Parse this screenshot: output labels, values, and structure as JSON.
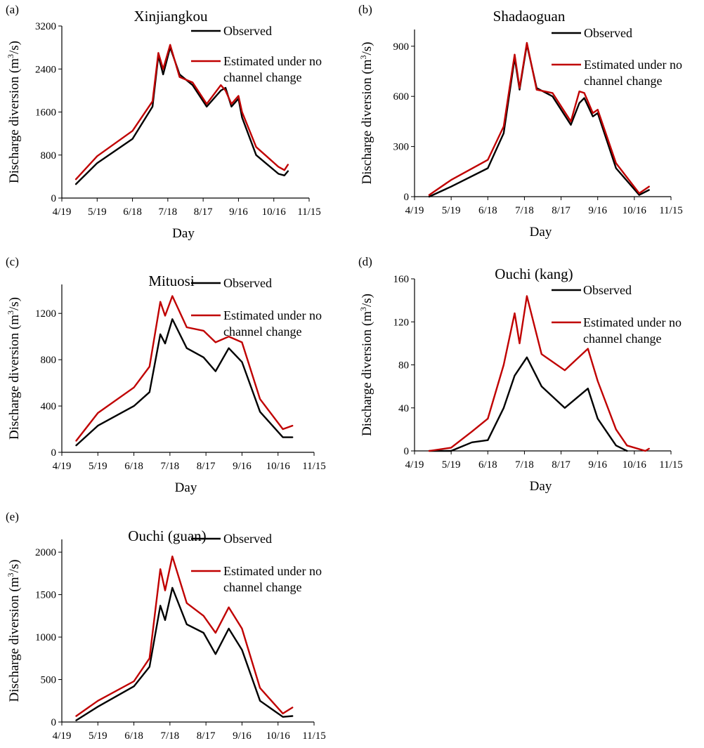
{
  "figure": {
    "panel_labels": [
      "(a)",
      "(b)",
      "(c)",
      "(d)",
      "(e)"
    ],
    "legend": {
      "observed": "Observed",
      "estimated_line1": "Estimated under no",
      "estimated_line2": "channel change"
    },
    "ylabel": {
      "main": "Discharge diversion (m",
      "sup": "3",
      "tail": "/s)"
    },
    "xlabel": "Day",
    "x_tick_labels": [
      "4/19",
      "5/19",
      "6/18",
      "7/18",
      "8/17",
      "9/16",
      "10/16",
      "11/15"
    ],
    "colors": {
      "observed": "#000000",
      "estimated": "#c00000",
      "axis": "#000000"
    }
  },
  "chart_data": [
    {
      "type": "line",
      "panel": "(a)",
      "title": "Xinjiangkou",
      "xlabel": "Day",
      "ylabel": "Discharge diversion (m3/s)",
      "x_ticks": [
        "4/19",
        "5/19",
        "6/18",
        "7/18",
        "8/17",
        "9/16",
        "10/16",
        "11/15"
      ],
      "ylim": [
        0,
        3200
      ],
      "y_ticks": [
        0,
        800,
        1600,
        2400,
        3200
      ],
      "legend_position": "top-right",
      "series": [
        {
          "name": "Observed",
          "color": "#000000",
          "x": [
            "5/1",
            "5/19",
            "6/18",
            "7/5",
            "7/10",
            "7/14",
            "7/20",
            "7/28",
            "8/8",
            "8/20",
            "9/1",
            "9/5",
            "9/10",
            "9/16",
            "9/19",
            "10/1",
            "10/20",
            "10/25",
            "10/28"
          ],
          "y": [
            260,
            650,
            1100,
            1700,
            2650,
            2300,
            2800,
            2300,
            2100,
            1700,
            2000,
            2050,
            1700,
            1850,
            1500,
            800,
            450,
            420,
            500
          ]
        },
        {
          "name": "Estimated under no channel change",
          "color": "#c00000",
          "x": [
            "5/1",
            "5/19",
            "6/18",
            "7/5",
            "7/10",
            "7/14",
            "7/20",
            "7/28",
            "8/8",
            "8/20",
            "9/1",
            "9/5",
            "9/10",
            "9/16",
            "9/19",
            "10/1",
            "10/20",
            "10/25",
            "10/28"
          ],
          "y": [
            350,
            780,
            1250,
            1800,
            2700,
            2400,
            2850,
            2250,
            2150,
            1750,
            2100,
            2000,
            1750,
            1900,
            1600,
            950,
            580,
            520,
            620
          ]
        }
      ]
    },
    {
      "type": "line",
      "panel": "(b)",
      "title": "Shadaoguan",
      "xlabel": "Day",
      "ylabel": "Discharge diversion (m3/s)",
      "x_ticks": [
        "4/19",
        "5/19",
        "6/18",
        "7/18",
        "8/17",
        "9/16",
        "10/16",
        "11/15"
      ],
      "ylim": [
        0,
        1000
      ],
      "y_ticks": [
        0,
        300,
        600,
        900
      ],
      "legend_position": "top-right",
      "series": [
        {
          "name": "Observed",
          "color": "#000000",
          "x": [
            "5/1",
            "5/19",
            "6/18",
            "7/1",
            "7/10",
            "7/14",
            "7/20",
            "7/28",
            "8/10",
            "8/25",
            "9/1",
            "9/5",
            "9/12",
            "9/16",
            "10/1",
            "10/20",
            "10/28"
          ],
          "y": [
            0,
            60,
            170,
            380,
            830,
            640,
            910,
            650,
            600,
            430,
            560,
            590,
            480,
            500,
            170,
            10,
            40
          ]
        },
        {
          "name": "Estimated under no channel change",
          "color": "#c00000",
          "x": [
            "5/1",
            "5/19",
            "6/18",
            "7/1",
            "7/10",
            "7/14",
            "7/20",
            "7/28",
            "8/10",
            "8/25",
            "9/1",
            "9/5",
            "9/12",
            "9/16",
            "10/1",
            "10/20",
            "10/28"
          ],
          "y": [
            10,
            100,
            220,
            420,
            850,
            650,
            920,
            640,
            620,
            450,
            630,
            620,
            500,
            520,
            200,
            20,
            60
          ]
        }
      ]
    },
    {
      "type": "line",
      "panel": "(c)",
      "title": "Mituosi",
      "xlabel": "Day",
      "ylabel": "Discharge diversion (m3/s)",
      "x_ticks": [
        "4/19",
        "5/19",
        "6/18",
        "7/18",
        "8/17",
        "9/16",
        "10/16",
        "11/15"
      ],
      "ylim": [
        0,
        1450
      ],
      "y_ticks": [
        0,
        400,
        800,
        1200
      ],
      "legend_position": "top-right",
      "series": [
        {
          "name": "Observed",
          "color": "#000000",
          "x": [
            "5/1",
            "5/19",
            "6/18",
            "7/1",
            "7/10",
            "7/14",
            "7/20",
            "8/1",
            "8/15",
            "8/25",
            "9/5",
            "9/16",
            "10/1",
            "10/20",
            "10/28"
          ],
          "y": [
            60,
            230,
            400,
            520,
            1020,
            940,
            1150,
            900,
            820,
            700,
            900,
            780,
            350,
            130,
            130
          ]
        },
        {
          "name": "Estimated under no channel change",
          "color": "#c00000",
          "x": [
            "5/1",
            "5/19",
            "6/18",
            "7/1",
            "7/10",
            "7/14",
            "7/20",
            "8/1",
            "8/15",
            "8/25",
            "9/5",
            "9/16",
            "10/1",
            "10/20",
            "10/28"
          ],
          "y": [
            100,
            340,
            560,
            740,
            1300,
            1180,
            1350,
            1080,
            1050,
            950,
            1000,
            950,
            460,
            200,
            230
          ]
        }
      ]
    },
    {
      "type": "line",
      "panel": "(d)",
      "title": "Ouchi (kang)",
      "xlabel": "Day",
      "ylabel": "Discharge diversion (m3/s)",
      "x_ticks": [
        "4/19",
        "5/19",
        "6/18",
        "7/18",
        "8/17",
        "9/16",
        "10/16",
        "11/15"
      ],
      "ylim": [
        0,
        160
      ],
      "y_ticks": [
        0,
        40,
        80,
        120,
        160
      ],
      "legend_position": "top-right",
      "series": [
        {
          "name": "Observed",
          "color": "#000000",
          "x": [
            "5/1",
            "5/19",
            "6/5",
            "6/18",
            "7/1",
            "7/10",
            "7/20",
            "8/1",
            "8/20",
            "9/8",
            "9/16",
            "10/1",
            "10/10"
          ],
          "y": [
            0,
            0,
            8,
            10,
            40,
            70,
            87,
            60,
            40,
            58,
            30,
            5,
            0
          ]
        },
        {
          "name": "Estimated under no channel change",
          "color": "#c00000",
          "x": [
            "5/1",
            "5/19",
            "6/5",
            "6/18",
            "7/1",
            "7/10",
            "7/14",
            "7/20",
            "8/1",
            "8/20",
            "9/8",
            "9/16",
            "10/1",
            "10/10",
            "10/25",
            "10/28"
          ],
          "y": [
            0,
            3,
            18,
            30,
            80,
            128,
            100,
            144,
            90,
            75,
            95,
            65,
            20,
            5,
            0,
            2
          ]
        }
      ]
    },
    {
      "type": "line",
      "panel": "(e)",
      "title": "Ouchi (guan)",
      "xlabel": "Day",
      "ylabel": "Discharge diversion (m3/s)",
      "x_ticks": [
        "4/19",
        "5/19",
        "6/18",
        "7/18",
        "8/17",
        "9/16",
        "10/16",
        "11/15"
      ],
      "ylim": [
        0,
        2150
      ],
      "y_ticks": [
        0,
        500,
        1000,
        1500,
        2000
      ],
      "legend_position": "top-right",
      "series": [
        {
          "name": "Observed",
          "color": "#000000",
          "x": [
            "5/1",
            "5/19",
            "6/18",
            "7/1",
            "7/10",
            "7/14",
            "7/20",
            "8/1",
            "8/15",
            "8/25",
            "9/5",
            "9/16",
            "10/1",
            "10/20",
            "10/28"
          ],
          "y": [
            20,
            180,
            420,
            650,
            1370,
            1200,
            1580,
            1150,
            1050,
            800,
            1100,
            850,
            250,
            60,
            70
          ]
        },
        {
          "name": "Estimated under no channel change",
          "color": "#c00000",
          "x": [
            "5/1",
            "5/19",
            "6/18",
            "7/1",
            "7/10",
            "7/14",
            "7/20",
            "8/1",
            "8/15",
            "8/25",
            "9/5",
            "9/16",
            "10/1",
            "10/20",
            "10/28"
          ],
          "y": [
            70,
            250,
            480,
            750,
            1800,
            1550,
            1950,
            1400,
            1250,
            1050,
            1350,
            1100,
            400,
            100,
            170
          ]
        }
      ]
    }
  ]
}
